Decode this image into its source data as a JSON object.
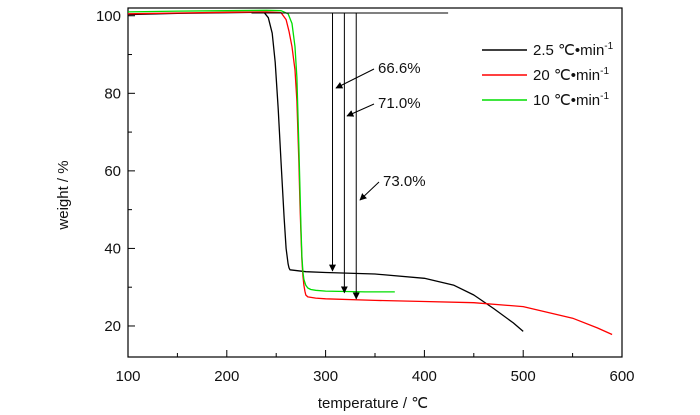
{
  "chart_data": {
    "type": "line",
    "xlabel": "temperature / ℃",
    "ylabel": "weight / %",
    "xlim": [
      100,
      600
    ],
    "ylim": [
      12,
      102
    ],
    "xticks": [
      100,
      200,
      300,
      400,
      500,
      600
    ],
    "yticks": [
      20,
      40,
      60,
      80,
      100
    ],
    "grid": false,
    "legend_position": "top-right",
    "series": [
      {
        "name": "2.5 ℃•min",
        "superscript": "-1",
        "color": "#000000",
        "x": [
          100,
          150,
          200,
          230,
          238,
          242,
          246,
          249,
          252,
          255,
          258,
          260,
          262,
          263,
          264,
          280,
          300,
          350,
          400,
          430,
          450,
          470,
          490,
          500
        ],
        "y": [
          100.3,
          100.6,
          100.8,
          100.9,
          100.8,
          99.5,
          95.5,
          88.0,
          76.0,
          62.0,
          48.0,
          40.0,
          36.0,
          35.0,
          34.5,
          34.0,
          33.8,
          33.4,
          32.3,
          30.5,
          28.0,
          24.5,
          20.8,
          18.6
        ]
      },
      {
        "name": "20 ℃•min",
        "superscript": "-1",
        "color": "#ff0000",
        "x": [
          100,
          150,
          200,
          240,
          255,
          260,
          263,
          266,
          269,
          271,
          272,
          273,
          274,
          275,
          276,
          277,
          278,
          279,
          280,
          282,
          290,
          300,
          350,
          400,
          450,
          500,
          550,
          575,
          590
        ],
        "y": [
          100.5,
          100.7,
          100.9,
          101.0,
          100.8,
          99.0,
          96.0,
          92.0,
          86.0,
          78.0,
          70.0,
          62.0,
          52.0,
          44.0,
          37.0,
          33.0,
          30.5,
          29.0,
          28.0,
          27.5,
          27.2,
          27.0,
          26.6,
          26.3,
          26.0,
          25.0,
          22.0,
          19.5,
          17.8
        ]
      },
      {
        "name": "10 ℃•min",
        "superscript": "-1",
        "color": "#00dd00",
        "x": [
          100,
          150,
          200,
          240,
          255,
          262,
          266,
          269,
          271,
          272,
          273,
          274,
          275,
          276,
          277,
          278,
          280,
          282,
          285,
          290,
          300,
          320,
          340,
          360,
          370
        ],
        "y": [
          101.0,
          101.2,
          101.3,
          101.4,
          101.3,
          100.5,
          98.0,
          92.0,
          84.0,
          75.0,
          66.0,
          56.0,
          46.0,
          38.0,
          34.0,
          32.0,
          30.5,
          29.8,
          29.4,
          29.2,
          29.0,
          28.9,
          28.8,
          28.8,
          28.8
        ]
      }
    ],
    "reference_line": {
      "x": [
        225,
        424
      ],
      "y": 100.7
    },
    "annotations": [
      {
        "text": "66.6%",
        "arrow_x": 307,
        "arrow_from_y": 100.7,
        "arrow_to_y": 34.2
      },
      {
        "text": "71.0%",
        "arrow_x": 319,
        "arrow_from_y": 100.7,
        "arrow_to_y": 28.6
      },
      {
        "text": "73.0%",
        "arrow_x": 331,
        "arrow_from_y": 100.7,
        "arrow_to_y": 27.0
      }
    ]
  }
}
